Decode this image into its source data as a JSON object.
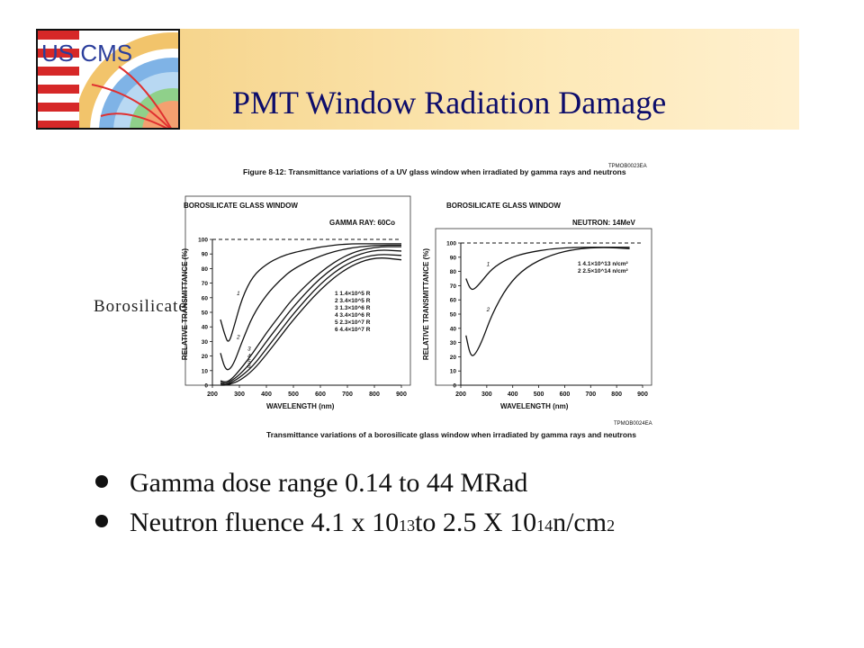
{
  "slide": {
    "title": "PMT Window Radiation Damage",
    "logo_text": "US CMS",
    "side_label": "Borosilicate"
  },
  "bullets": [
    {
      "text": "Gamma dose range 0.14 to 44 MRad"
    },
    {
      "prefix": "Neutron fluence  4.1 x 10",
      "exp1": "13",
      "mid": " to 2.5 X 10",
      "exp2": "14",
      "unit": " n/cm",
      "exp3": "2"
    }
  ],
  "colors": {
    "title": "#0d0d6b",
    "header_gold": "#f6d58d"
  },
  "chart_data": [
    {
      "type": "line",
      "figure_caption": "Figure 8-12: Transmittance variations of a UV glass window when irradiated by gamma rays and neutrons",
      "code_top": "TPMOB0023EA",
      "window_label": "BOROSILICATE GLASS WINDOW",
      "source_label": "GAMMA RAY: 60Co",
      "xlabel": "WAVELENGTH (nm)",
      "ylabel": "RELATIVE TRANSMITTANCE (%)",
      "xlim": [
        200,
        900
      ],
      "ylim": [
        0,
        100
      ],
      "xticks": [
        "200",
        "300",
        "400",
        "500",
        "600",
        "700",
        "800",
        "900"
      ],
      "yticks": [
        "0",
        "10",
        "20",
        "30",
        "40",
        "50",
        "60",
        "70",
        "80",
        "90",
        "100"
      ],
      "legend": [
        "1  1.4×10^5 R",
        "2  3.4×10^5 R",
        "3  1.3×10^6 R",
        "4  3.4×10^6 R",
        "5  2.3×10^7 R",
        "6  4.4×10^7 R"
      ],
      "series": [
        {
          "name": "1",
          "x": [
            230,
            245,
            260,
            280,
            310,
            350,
            400,
            450,
            500,
            600,
            700,
            800,
            900
          ],
          "y": [
            45,
            35,
            28,
            40,
            60,
            75,
            83,
            88,
            91,
            95,
            97,
            97,
            97
          ]
        },
        {
          "name": "2",
          "x": [
            230,
            245,
            260,
            280,
            310,
            350,
            400,
            450,
            500,
            600,
            700,
            800,
            900
          ],
          "y": [
            22,
            12,
            10,
            15,
            30,
            48,
            62,
            72,
            80,
            89,
            94,
            96,
            96
          ]
        },
        {
          "name": "3",
          "x": [
            230,
            250,
            270,
            300,
            350,
            400,
            450,
            500,
            600,
            700,
            800,
            900
          ],
          "y": [
            3,
            2,
            4,
            10,
            22,
            36,
            48,
            60,
            78,
            90,
            95,
            95
          ]
        },
        {
          "name": "4",
          "x": [
            230,
            250,
            270,
            300,
            350,
            400,
            450,
            500,
            600,
            700,
            800,
            900
          ],
          "y": [
            2,
            1,
            3,
            7,
            17,
            30,
            42,
            54,
            74,
            87,
            93,
            92
          ]
        },
        {
          "name": "5",
          "x": [
            230,
            250,
            270,
            300,
            350,
            400,
            450,
            500,
            600,
            700,
            800,
            900
          ],
          "y": [
            1,
            0,
            2,
            5,
            13,
            25,
            37,
            49,
            70,
            84,
            90,
            89
          ]
        },
        {
          "name": "6",
          "x": [
            230,
            250,
            270,
            300,
            350,
            400,
            450,
            500,
            600,
            700,
            800,
            900
          ],
          "y": [
            0,
            0,
            1,
            3,
            10,
            21,
            33,
            45,
            66,
            81,
            88,
            86
          ]
        }
      ]
    },
    {
      "type": "line",
      "figure_caption": "Transmittance variations of a borosilicate glass window when irradiated by gamma rays and neutrons",
      "code_bottom": "TPMOB0024EA",
      "window_label": "BOROSILICATE GLASS WINDOW",
      "source_label": "NEUTRON: 14MeV",
      "xlabel": "WAVELENGTH (nm)",
      "ylabel": "RELATIVE TRANSMITTANCE (%)",
      "xlim": [
        200,
        900
      ],
      "ylim": [
        0,
        100
      ],
      "xticks": [
        "200",
        "300",
        "400",
        "500",
        "600",
        "700",
        "800",
        "900"
      ],
      "yticks": [
        "0",
        "10",
        "20",
        "30",
        "40",
        "50",
        "60",
        "70",
        "80",
        "90",
        "100"
      ],
      "legend": [
        "1  4.1×10^13 n/cm²",
        "2  2.5×10^14 n/cm²"
      ],
      "series": [
        {
          "name": "1",
          "x": [
            220,
            235,
            250,
            280,
            320,
            380,
            450,
            550,
            650,
            750,
            850
          ],
          "y": [
            75,
            68,
            67,
            73,
            82,
            89,
            93,
            96,
            97,
            97,
            97
          ]
        },
        {
          "name": "2",
          "x": [
            220,
            235,
            250,
            280,
            320,
            380,
            450,
            550,
            650,
            750,
            850
          ],
          "y": [
            35,
            22,
            20,
            30,
            50,
            70,
            83,
            92,
            96,
            97,
            96
          ]
        }
      ]
    }
  ]
}
